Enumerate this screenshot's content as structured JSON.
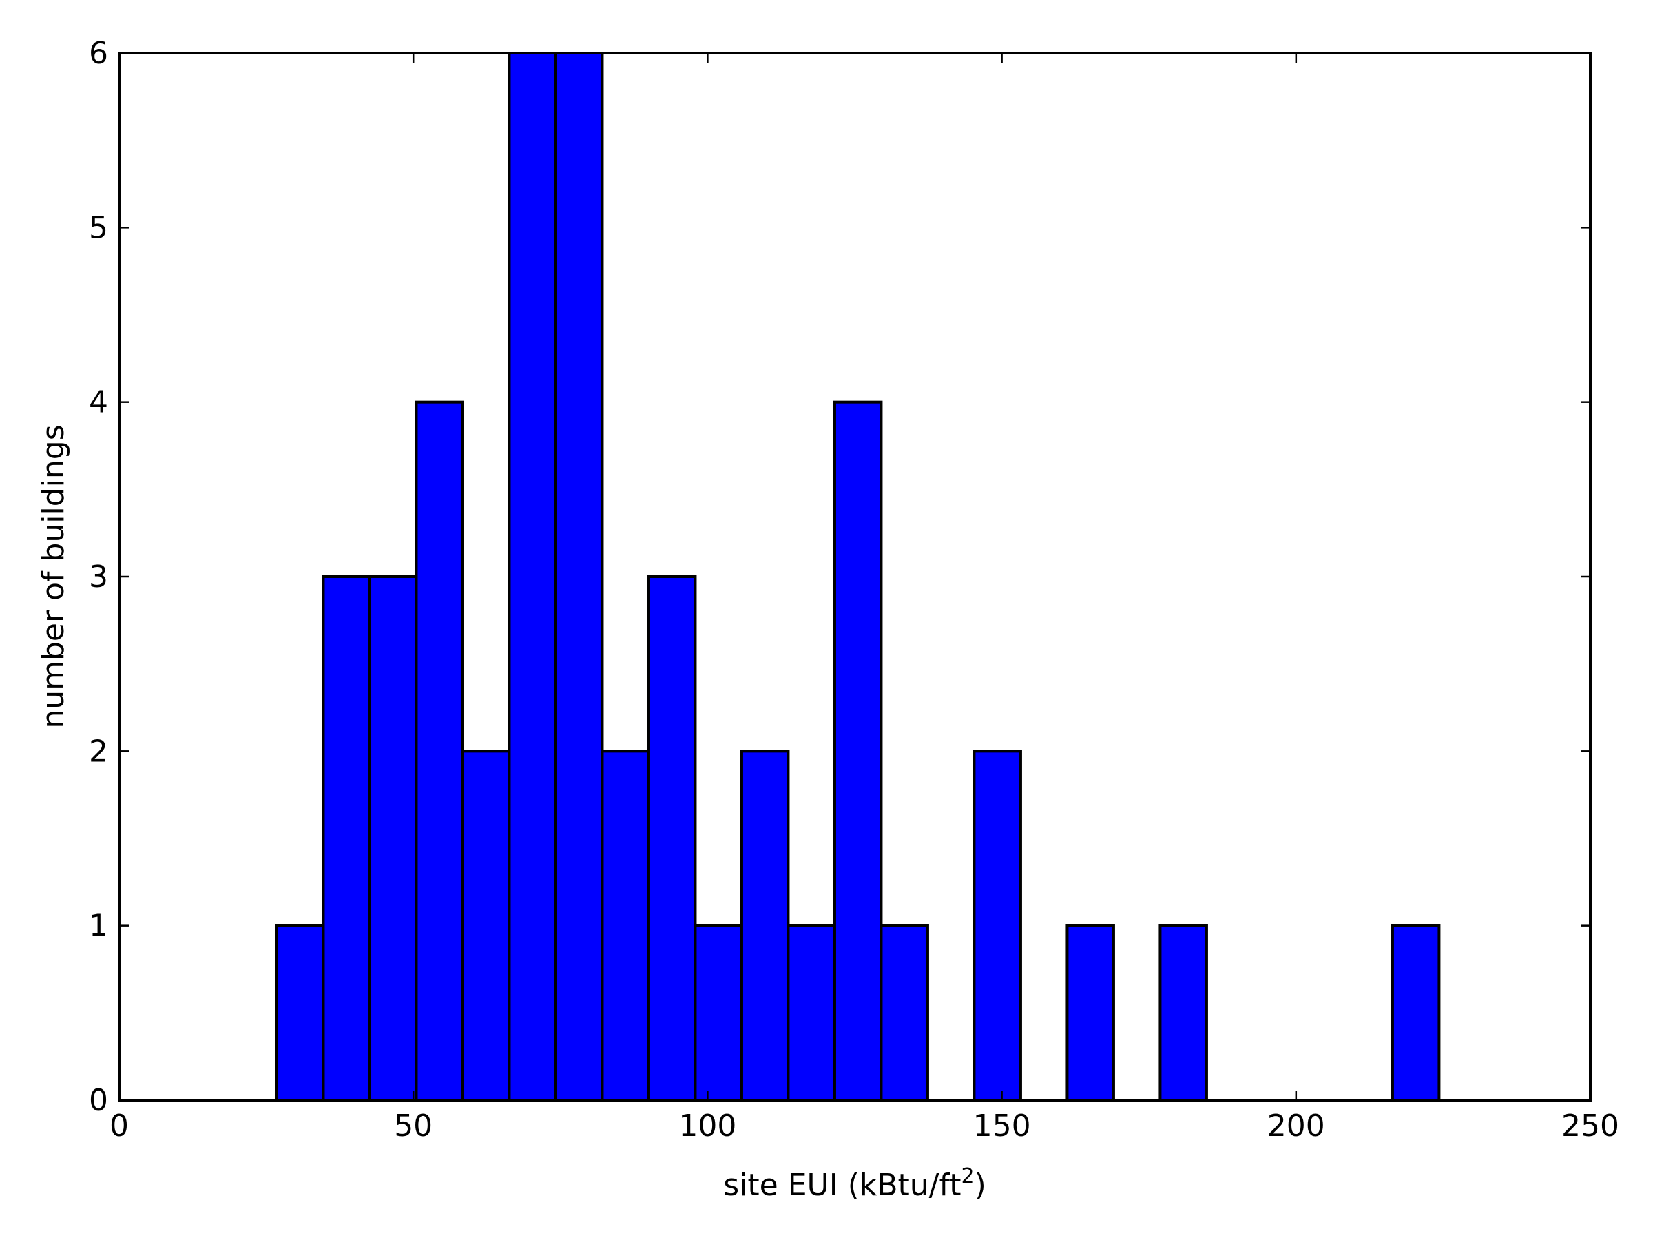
{
  "chart_data": {
    "type": "bar",
    "title": "",
    "xlabel": "site EUI (kBtu/ft",
    "xlabel_superscript": "2",
    "xlabel_suffix": ")",
    "ylabel": "number of buildings",
    "xlim": [
      0,
      250
    ],
    "ylim": [
      0,
      6
    ],
    "xticks": [
      0,
      50,
      100,
      150,
      200,
      250
    ],
    "yticks": [
      0,
      1,
      2,
      3,
      4,
      5,
      6
    ],
    "grid": false,
    "legend": "none",
    "bar_color": "#0000ff",
    "edge_color": "#000000",
    "bins": [
      {
        "x0": 26.8,
        "x1": 34.7,
        "count": 1
      },
      {
        "x0": 34.7,
        "x1": 42.6,
        "count": 3
      },
      {
        "x0": 42.6,
        "x1": 50.5,
        "count": 3
      },
      {
        "x0": 50.5,
        "x1": 58.4,
        "count": 4
      },
      {
        "x0": 58.4,
        "x1": 66.3,
        "count": 2
      },
      {
        "x0": 66.3,
        "x1": 74.2,
        "count": 6
      },
      {
        "x0": 74.2,
        "x1": 82.1,
        "count": 6
      },
      {
        "x0": 82.1,
        "x1": 90.0,
        "count": 2
      },
      {
        "x0": 90.0,
        "x1": 97.9,
        "count": 3
      },
      {
        "x0": 97.9,
        "x1": 105.8,
        "count": 1
      },
      {
        "x0": 105.8,
        "x1": 113.7,
        "count": 2
      },
      {
        "x0": 113.7,
        "x1": 121.6,
        "count": 1
      },
      {
        "x0": 121.6,
        "x1": 129.5,
        "count": 4
      },
      {
        "x0": 129.5,
        "x1": 137.4,
        "count": 1
      },
      {
        "x0": 145.3,
        "x1": 153.2,
        "count": 2
      },
      {
        "x0": 161.1,
        "x1": 169.0,
        "count": 1
      },
      {
        "x0": 176.9,
        "x1": 184.8,
        "count": 1
      },
      {
        "x0": 216.4,
        "x1": 224.3,
        "count": 1
      }
    ]
  }
}
